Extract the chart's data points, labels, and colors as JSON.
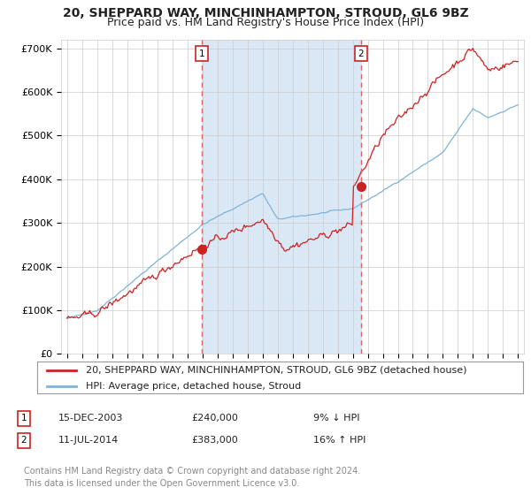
{
  "title": "20, SHEPPARD WAY, MINCHINHAMPTON, STROUD, GL6 9BZ",
  "subtitle": "Price paid vs. HM Land Registry's House Price Index (HPI)",
  "ylabel_ticks": [
    "£0",
    "£100K",
    "£200K",
    "£300K",
    "£400K",
    "£500K",
    "£600K",
    "£700K"
  ],
  "ytick_values": [
    0,
    100000,
    200000,
    300000,
    400000,
    500000,
    600000,
    700000
  ],
  "ylim": [
    0,
    720000
  ],
  "xlim_start": 1994.6,
  "xlim_end": 2025.4,
  "sale1_x": 2003.96,
  "sale1_y": 240000,
  "sale1_label": "15-DEC-2003",
  "sale1_price": "£240,000",
  "sale1_hpi": "9% ↓ HPI",
  "sale2_x": 2014.53,
  "sale2_y": 383000,
  "sale2_label": "11-JUL-2014",
  "sale2_price": "£383,000",
  "sale2_hpi": "16% ↑ HPI",
  "line_color_hpi": "#7EB3D8",
  "line_color_price": "#CC2222",
  "marker_color": "#CC2222",
  "vline_color": "#DD6666",
  "fill_color": "#DAE8F5",
  "background_color": "#FFFFFF",
  "grid_color": "#CCCCCC",
  "legend_label_price": "20, SHEPPARD WAY, MINCHINHAMPTON, STROUD, GL6 9BZ (detached house)",
  "legend_label_hpi": "HPI: Average price, detached house, Stroud",
  "footnote": "Contains HM Land Registry data © Crown copyright and database right 2024.\nThis data is licensed under the Open Government Licence v3.0.",
  "title_fontsize": 10,
  "subtitle_fontsize": 9,
  "tick_fontsize": 8,
  "legend_fontsize": 8,
  "footnote_fontsize": 7
}
